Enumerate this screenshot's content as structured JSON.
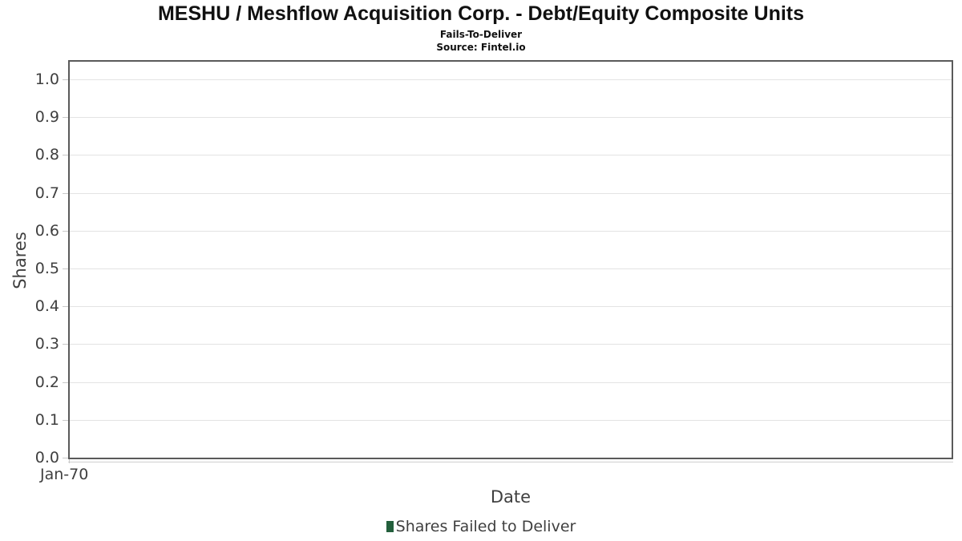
{
  "header": {
    "title": "MESHU / Meshflow Acquisition Corp. - Debt/Equity Composite Units",
    "subtitle": "Fails-To-Deliver",
    "source": "Source: Fintel.io"
  },
  "chart_data": {
    "type": "bar",
    "title": "MESHU / Meshflow Acquisition Corp. - Debt/Equity Composite Units",
    "subtitle": "Fails-To-Deliver",
    "source": "Source: Fintel.io",
    "xlabel": "Date",
    "ylabel": "Shares",
    "ylim": [
      0.0,
      1.05
    ],
    "y_tick_labels": [
      "0.0",
      "0.1",
      "0.2",
      "0.3",
      "0.4",
      "0.5",
      "0.6",
      "0.7",
      "0.8",
      "0.9",
      "1.0"
    ],
    "x_tick_labels": [
      "Jan-70"
    ],
    "grid": "horizontal gridlines on",
    "legend_position": "bottom-center",
    "series": [
      {
        "name": "Shares Failed to Deliver",
        "color": "#235f3c",
        "x": [],
        "values": []
      }
    ]
  },
  "legend": {
    "items": [
      {
        "label": "Shares Failed to Deliver",
        "color": "#235f3c"
      }
    ]
  },
  "colors": {
    "background": "#ffffff",
    "title_text": "#111111",
    "axis_text": "#3f3f3f",
    "plot_border": "#5a5a5a",
    "gridline": "#e3e3e3",
    "tick_mark": "#c9c9c9",
    "x_axis_line": "#cfcfcf",
    "legend_marker": "#235f3c"
  }
}
